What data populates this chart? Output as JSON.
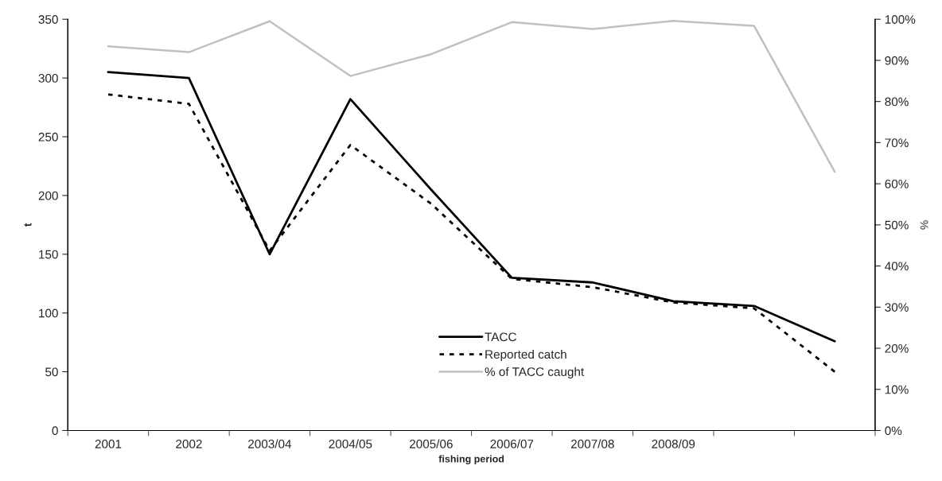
{
  "chart_data": {
    "type": "line",
    "xlabel": "fishing period",
    "ylabel": "t",
    "y2label": "%",
    "categories": [
      "2001",
      "2002",
      "2003/04",
      "2004/05",
      "2005/06",
      "2006/07",
      "2007/08",
      "2008/09",
      null,
      null
    ],
    "series": [
      {
        "name": "TACC",
        "color": "#000000",
        "line_style": "solid",
        "values": [
          305,
          300,
          150,
          282,
          205,
          130,
          126,
          110,
          106,
          76
        ]
      },
      {
        "name": "Reported catch",
        "color": "#000000",
        "line_style": "dotted",
        "values": [
          286,
          278,
          153,
          243,
          193,
          129,
          122,
          109,
          104,
          50
        ]
      },
      {
        "name": "% of TACC caught",
        "color": "#c0c0c0",
        "line_style": "solid",
        "axis": "y2",
        "values": [
          93.4,
          92,
          99.5,
          86.2,
          91.5,
          99.3,
          97.6,
          99.6,
          98.4,
          62.9
        ]
      }
    ],
    "ylim": [
      0,
      350
    ],
    "yticks": [
      0,
      50,
      100,
      150,
      200,
      250,
      300,
      350
    ],
    "y2lim": [
      0,
      100
    ],
    "y2ticks": [
      {
        "value": 0,
        "label": "0%"
      },
      {
        "value": 10,
        "label": "10%"
      },
      {
        "value": 20,
        "label": "20%"
      },
      {
        "value": 30,
        "label": "30%"
      },
      {
        "value": 40,
        "label": "40%"
      },
      {
        "value": 50,
        "label": "50%"
      },
      {
        "value": 60,
        "label": "60%"
      },
      {
        "value": 70,
        "label": "70%"
      },
      {
        "value": 80,
        "label": "80%"
      },
      {
        "value": 90,
        "label": "90%"
      },
      {
        "value": 100,
        "label": "100%"
      }
    ],
    "legend": "bottom",
    "grid": false,
    "marker": "none"
  }
}
